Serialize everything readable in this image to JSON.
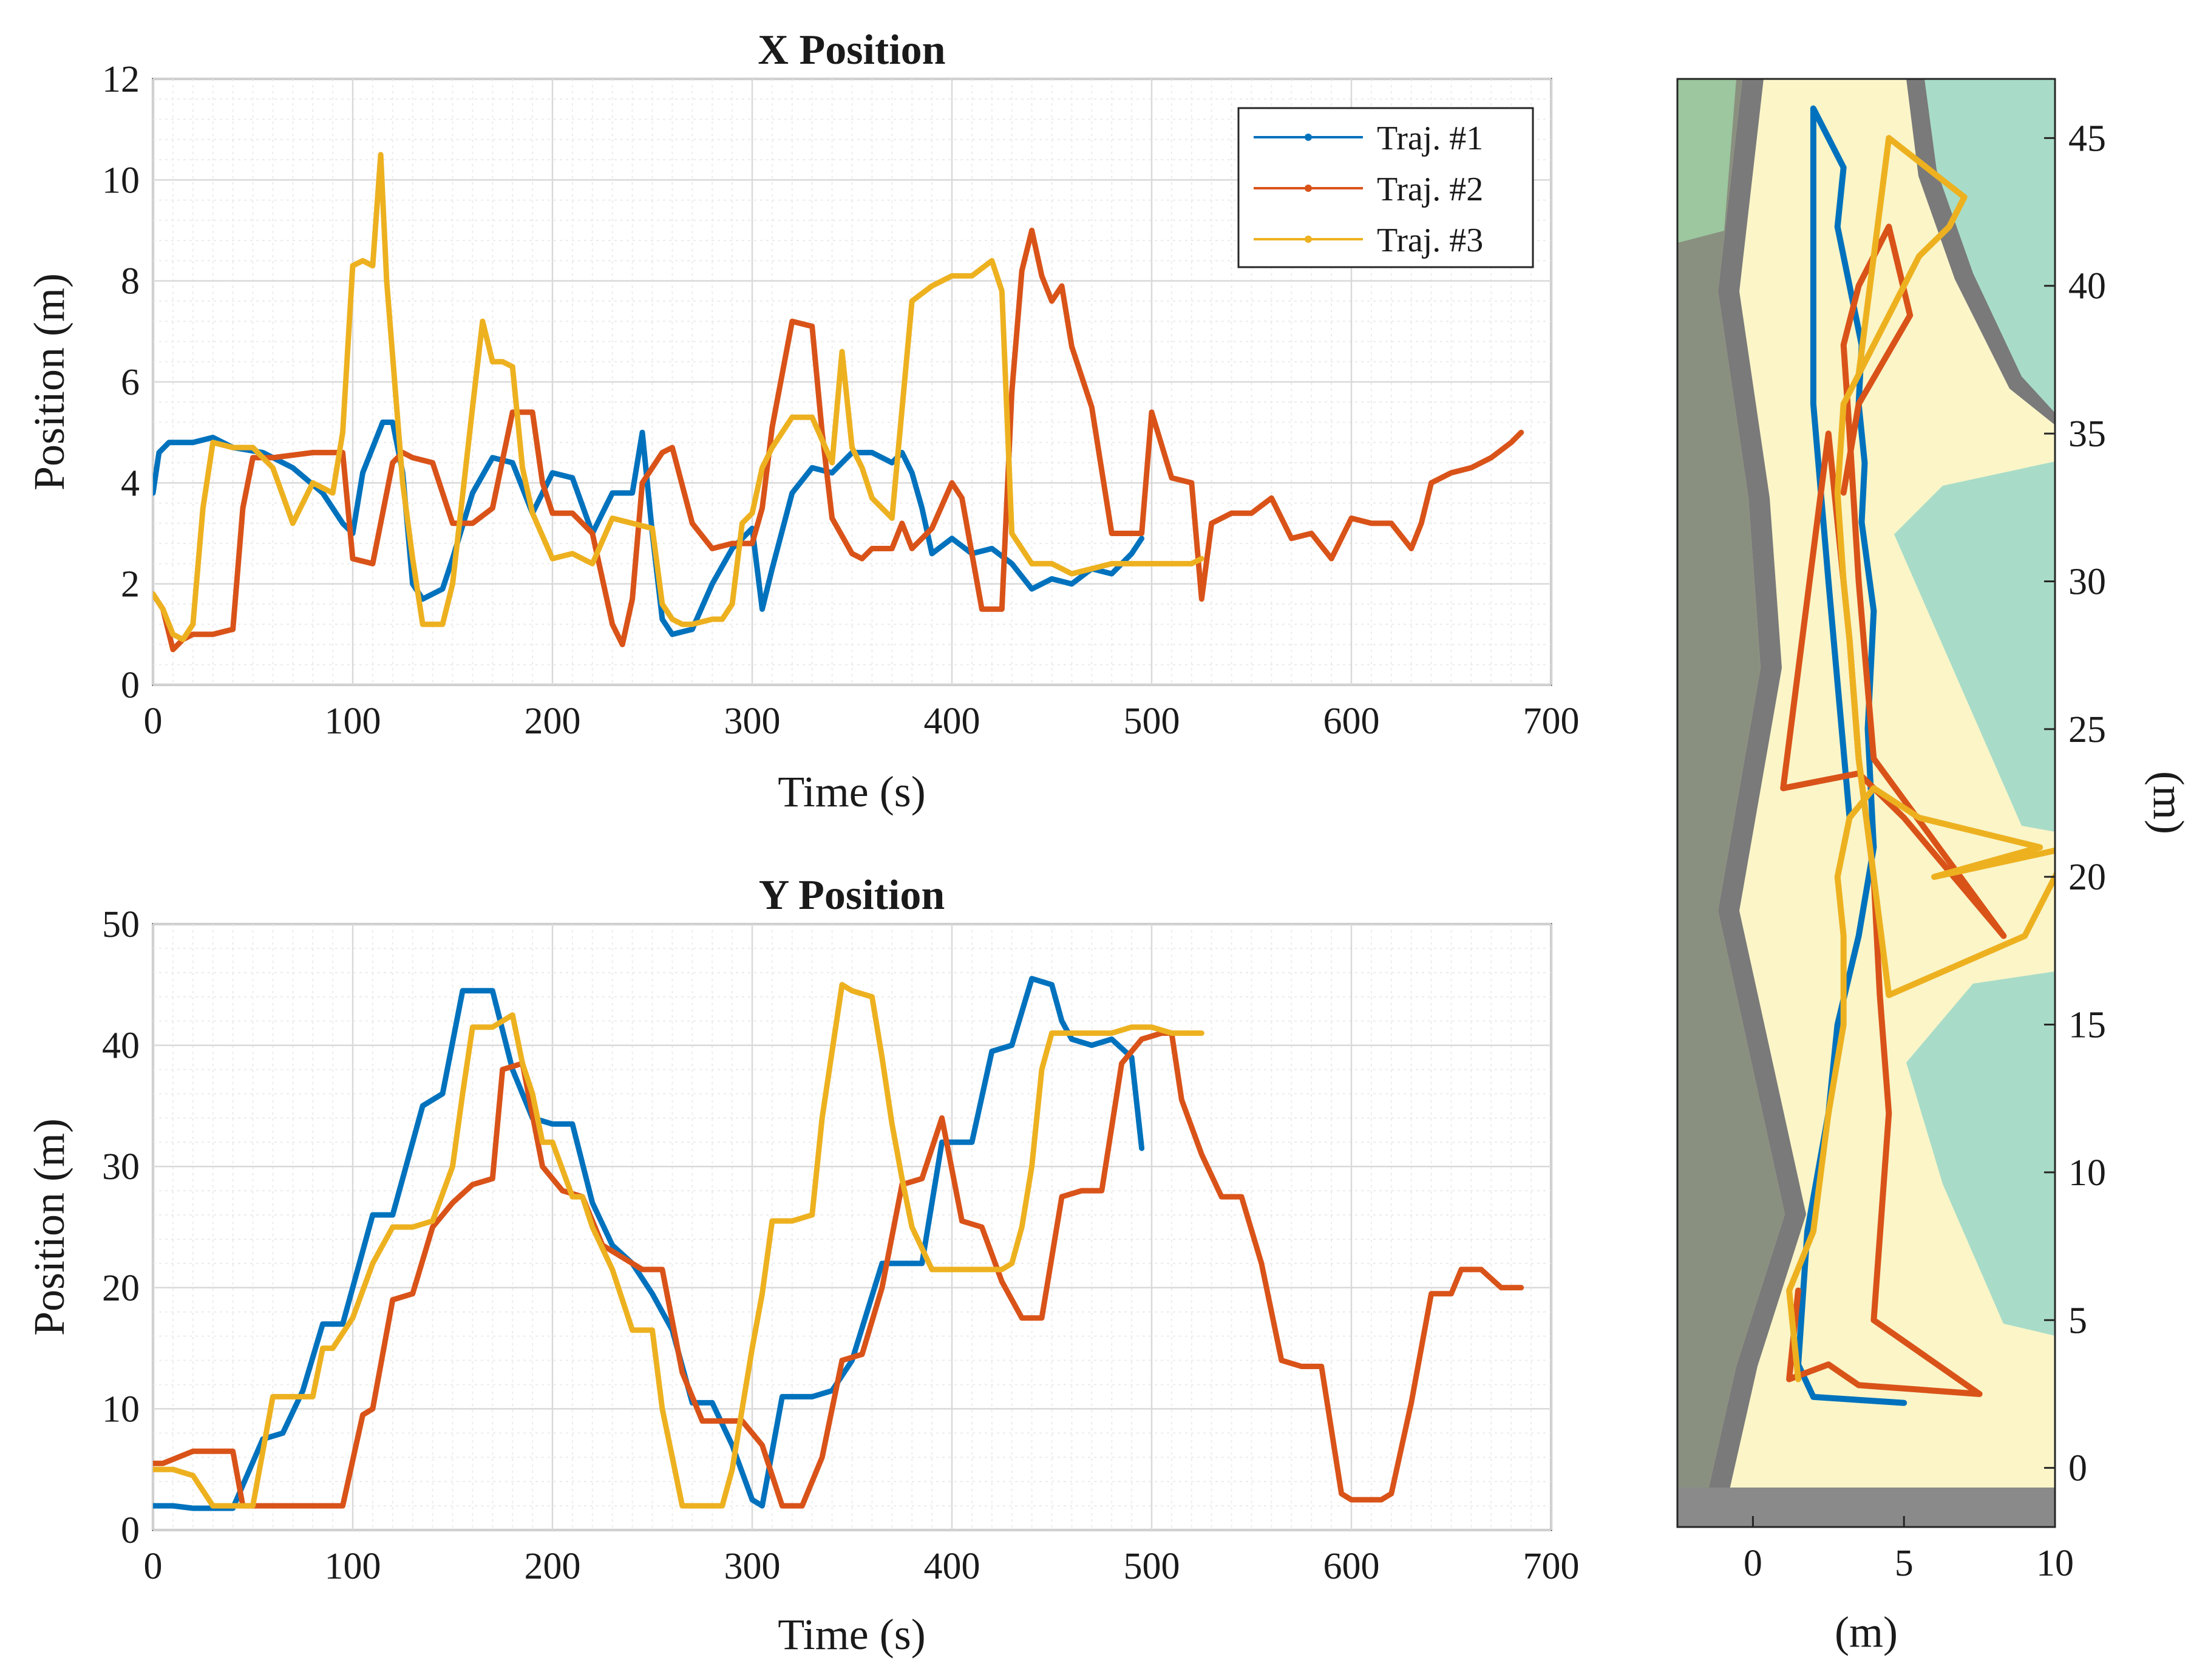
{
  "colors": {
    "traj1": "#0072BD",
    "traj2": "#D95319",
    "traj3": "#EDB120",
    "grid": "#d9d9d9"
  },
  "chart_data": [
    {
      "type": "line",
      "title": "X Position",
      "xlabel": "Time (s)",
      "ylabel": "Position (m)",
      "xlim": [
        0,
        700
      ],
      "ylim": [
        0,
        12
      ],
      "xticks": [
        "0",
        "100",
        "200",
        "300",
        "400",
        "500",
        "600",
        "700"
      ],
      "yticks": [
        "0",
        "2",
        "4",
        "6",
        "8",
        "10",
        "12"
      ],
      "legend": {
        "position": "top-right",
        "entries": [
          "Traj. #1",
          "Traj. #2",
          "Traj. #3"
        ]
      },
      "series": [
        {
          "name": "Traj. #1",
          "x": [
            0,
            3,
            8,
            20,
            30,
            40,
            55,
            70,
            85,
            95,
            100,
            105,
            115,
            120,
            125,
            130,
            135,
            145,
            150,
            160,
            170,
            180,
            190,
            200,
            210,
            220,
            230,
            240,
            245,
            250,
            255,
            260,
            270,
            280,
            290,
            300,
            305,
            310,
            320,
            330,
            340,
            350,
            360,
            370,
            375,
            380,
            385,
            390,
            400,
            410,
            420,
            430,
            440,
            450,
            460,
            470,
            480,
            490,
            495
          ],
          "y": [
            3.8,
            4.6,
            4.8,
            4.8,
            4.9,
            4.7,
            4.6,
            4.3,
            3.8,
            3.2,
            3.0,
            4.2,
            5.2,
            5.2,
            4.2,
            2.0,
            1.7,
            1.9,
            2.5,
            3.8,
            4.5,
            4.4,
            3.4,
            4.2,
            4.1,
            3.0,
            3.8,
            3.8,
            5.0,
            3.0,
            1.3,
            1.0,
            1.1,
            2.0,
            2.7,
            3.1,
            1.5,
            2.3,
            3.8,
            4.3,
            4.2,
            4.6,
            4.6,
            4.4,
            4.6,
            4.2,
            3.5,
            2.6,
            2.9,
            2.6,
            2.7,
            2.4,
            1.9,
            2.1,
            2.0,
            2.3,
            2.2,
            2.6,
            2.9
          ]
        },
        {
          "name": "Traj. #2",
          "x": [
            0,
            5,
            10,
            15,
            20,
            30,
            40,
            45,
            50,
            60,
            80,
            90,
            95,
            100,
            110,
            120,
            125,
            130,
            140,
            150,
            160,
            170,
            180,
            190,
            195,
            200,
            210,
            220,
            230,
            235,
            240,
            245,
            250,
            255,
            260,
            270,
            280,
            290,
            300,
            305,
            310,
            320,
            330,
            335,
            340,
            350,
            355,
            360,
            370,
            375,
            380,
            390,
            400,
            405,
            410,
            415,
            420,
            425,
            430,
            435,
            440,
            445,
            450,
            455,
            460,
            470,
            480,
            490,
            495,
            500,
            510,
            520,
            525,
            530,
            540,
            550,
            560,
            570,
            580,
            590,
            600,
            610,
            620,
            630,
            635,
            640,
            650,
            660,
            670,
            680,
            685
          ],
          "y": [
            1.8,
            1.5,
            0.7,
            0.9,
            1.0,
            1.0,
            1.1,
            3.5,
            4.5,
            4.5,
            4.6,
            4.6,
            4.6,
            2.5,
            2.4,
            4.4,
            4.6,
            4.5,
            4.4,
            3.2,
            3.2,
            3.5,
            5.4,
            5.4,
            4.0,
            3.4,
            3.4,
            3.0,
            1.2,
            0.8,
            1.7,
            4.0,
            4.3,
            4.6,
            4.7,
            3.2,
            2.7,
            2.8,
            2.8,
            3.5,
            5.1,
            7.2,
            7.1,
            5.0,
            3.3,
            2.6,
            2.5,
            2.7,
            2.7,
            3.2,
            2.7,
            3.1,
            4.0,
            3.7,
            2.6,
            1.5,
            1.5,
            1.5,
            5.8,
            8.2,
            9.0,
            8.1,
            7.6,
            7.9,
            6.7,
            5.5,
            3.0,
            3.0,
            3.0,
            5.4,
            4.1,
            4.0,
            1.7,
            3.2,
            3.4,
            3.4,
            3.7,
            2.9,
            3.0,
            2.5,
            3.3,
            3.2,
            3.2,
            2.7,
            3.2,
            4.0,
            4.2,
            4.3,
            4.5,
            4.8,
            5.0
          ]
        },
        {
          "name": "Traj. #3",
          "x": [
            0,
            5,
            10,
            15,
            20,
            25,
            30,
            40,
            50,
            60,
            70,
            80,
            90,
            95,
            100,
            105,
            110,
            114,
            117,
            120,
            125,
            130,
            135,
            140,
            145,
            150,
            160,
            165,
            170,
            175,
            180,
            185,
            190,
            200,
            210,
            220,
            230,
            240,
            250,
            255,
            260,
            265,
            270,
            280,
            285,
            290,
            295,
            300,
            305,
            310,
            320,
            330,
            340,
            345,
            350,
            355,
            360,
            370,
            380,
            390,
            400,
            410,
            420,
            425,
            430,
            440,
            450,
            460,
            470,
            480,
            490,
            500,
            510,
            520,
            525
          ],
          "y": [
            1.8,
            1.5,
            1.0,
            0.9,
            1.2,
            3.5,
            4.8,
            4.7,
            4.7,
            4.3,
            3.2,
            4.0,
            3.8,
            5.0,
            8.3,
            8.4,
            8.3,
            10.5,
            8.0,
            6.5,
            4.0,
            2.5,
            1.2,
            1.2,
            1.2,
            2.0,
            5.5,
            7.2,
            6.4,
            6.4,
            6.3,
            4.3,
            3.4,
            2.5,
            2.6,
            2.4,
            3.3,
            3.2,
            3.1,
            1.6,
            1.3,
            1.2,
            1.2,
            1.3,
            1.3,
            1.6,
            3.2,
            3.4,
            4.3,
            4.7,
            5.3,
            5.3,
            4.4,
            6.6,
            4.7,
            4.3,
            3.7,
            3.3,
            7.6,
            7.9,
            8.1,
            8.1,
            8.4,
            7.8,
            3.0,
            2.4,
            2.4,
            2.2,
            2.3,
            2.4,
            2.4,
            2.4,
            2.4,
            2.4,
            2.5
          ]
        }
      ]
    },
    {
      "type": "line",
      "title": "Y Position",
      "xlabel": "Time (s)",
      "ylabel": "Position (m)",
      "xlim": [
        0,
        700
      ],
      "ylim": [
        0,
        50
      ],
      "xticks": [
        "0",
        "100",
        "200",
        "300",
        "400",
        "500",
        "600",
        "700"
      ],
      "yticks": [
        "0",
        "10",
        "20",
        "30",
        "40",
        "50"
      ],
      "series": [
        {
          "name": "Traj. #1",
          "x": [
            0,
            10,
            20,
            40,
            55,
            65,
            75,
            85,
            95,
            110,
            120,
            135,
            145,
            155,
            170,
            180,
            190,
            200,
            210,
            220,
            230,
            240,
            250,
            260,
            270,
            280,
            290,
            300,
            305,
            315,
            330,
            340,
            350,
            365,
            375,
            385,
            395,
            410,
            420,
            430,
            440,
            450,
            455,
            460,
            470,
            480,
            490,
            495
          ],
          "y": [
            2,
            2,
            1.8,
            1.8,
            7.5,
            8,
            11.5,
            17,
            17,
            26,
            26,
            35,
            36,
            44.5,
            44.5,
            38,
            34,
            33.5,
            33.5,
            27,
            23.5,
            22,
            19.5,
            16.5,
            10.5,
            10.5,
            7,
            2.5,
            2,
            11,
            11,
            11.5,
            14,
            22,
            22,
            22,
            32,
            32,
            39.5,
            40,
            45.5,
            45,
            42,
            40.5,
            40,
            40.5,
            39,
            31.5
          ]
        },
        {
          "name": "Traj. #2",
          "x": [
            0,
            5,
            20,
            40,
            45,
            50,
            60,
            70,
            90,
            95,
            105,
            110,
            120,
            130,
            140,
            150,
            160,
            170,
            175,
            185,
            195,
            205,
            215,
            225,
            235,
            245,
            255,
            265,
            275,
            285,
            295,
            305,
            315,
            325,
            335,
            345,
            355,
            365,
            375,
            385,
            395,
            405,
            415,
            425,
            435,
            445,
            455,
            465,
            475,
            485,
            495,
            505,
            510,
            515,
            525,
            535,
            545,
            555,
            565,
            575,
            585,
            595,
            600,
            615,
            620,
            630,
            640,
            650,
            655,
            665,
            675,
            685
          ],
          "y": [
            5.5,
            5.5,
            6.5,
            6.5,
            2,
            2,
            2,
            2,
            2,
            2,
            9.5,
            10,
            19,
            19.5,
            25,
            27,
            28.5,
            29,
            38,
            38.5,
            30,
            28,
            27.5,
            23.5,
            22.5,
            21.5,
            21.5,
            13,
            9,
            9,
            9,
            7,
            2,
            2,
            6,
            14,
            14.5,
            20,
            28.5,
            29,
            34,
            25.5,
            25,
            20.5,
            17.5,
            17.5,
            27.5,
            28,
            28,
            38.5,
            40.5,
            41,
            41,
            35.5,
            31,
            27.5,
            27.5,
            22,
            14,
            13.5,
            13.5,
            3,
            2.5,
            2.5,
            3,
            10.5,
            19.5,
            19.5,
            21.5,
            21.5,
            20,
            20
          ]
        },
        {
          "name": "Traj. #3",
          "x": [
            0,
            10,
            20,
            30,
            40,
            50,
            60,
            70,
            80,
            85,
            90,
            100,
            110,
            120,
            130,
            140,
            150,
            155,
            160,
            170,
            180,
            185,
            190,
            195,
            200,
            210,
            215,
            220,
            230,
            240,
            250,
            255,
            260,
            265,
            270,
            275,
            285,
            290,
            295,
            300,
            305,
            310,
            315,
            320,
            330,
            335,
            345,
            350,
            360,
            365,
            370,
            375,
            380,
            390,
            395,
            400,
            410,
            420,
            425,
            430,
            435,
            440,
            445,
            450,
            460,
            470,
            480,
            490,
            500,
            510,
            520,
            525
          ],
          "y": [
            5,
            5,
            4.5,
            2,
            2,
            2,
            11,
            11,
            11,
            15,
            15,
            17.5,
            22,
            25,
            25,
            25.5,
            30,
            36,
            41.5,
            41.5,
            42.5,
            38.5,
            36,
            32,
            32,
            27.5,
            27.5,
            25,
            21.5,
            16.5,
            16.5,
            10,
            6,
            2,
            2,
            2,
            2,
            5,
            10,
            15,
            19.5,
            25.5,
            25.5,
            25.5,
            26,
            34,
            45,
            44.5,
            44,
            39,
            33.5,
            29,
            25,
            21.5,
            21.5,
            21.5,
            21.5,
            21.5,
            21.5,
            22,
            25,
            30,
            38,
            41,
            41,
            41,
            41,
            41.5,
            41.5,
            41,
            41,
            41
          ]
        }
      ]
    },
    {
      "type": "line",
      "title": "",
      "xlabel": "(m)",
      "ylabel": "(m)",
      "ylabel_position": "right",
      "xlim": [
        -2.5,
        10
      ],
      "ylim": [
        -2,
        47
      ],
      "xticks": [
        "0",
        "5",
        "10"
      ],
      "yticks": [
        "0",
        "5",
        "10",
        "15",
        "20",
        "25",
        "30",
        "35",
        "40",
        "45"
      ],
      "background": "floor-plan map",
      "series": [
        {
          "name": "Traj. #1",
          "x": [
            5,
            3.5,
            2,
            1.5,
            1.8,
            2.5,
            2.8,
            3.5,
            4.0,
            3.8,
            4.0,
            3.6,
            3.7,
            3.5,
            3.6,
            3.2,
            2.8,
            3.0,
            2.5,
            2.0,
            2.0,
            2.0,
            2.5,
            3.2
          ],
          "y": [
            2.2,
            2.3,
            2.4,
            3.5,
            8,
            12,
            15,
            18,
            21,
            25,
            29,
            32,
            34,
            36,
            38,
            40,
            42,
            44,
            45,
            46,
            42,
            36,
            30,
            22
          ]
        },
        {
          "name": "Traj. #2",
          "x": [
            1.5,
            1.2,
            2.5,
            3.5,
            7.5,
            4,
            4.5,
            4.2,
            4.0,
            3.5,
            3.2,
            2.8,
            2.5,
            1.0,
            3.5,
            5,
            8.3,
            4,
            3.5,
            3.2,
            3.0,
            3.5,
            4.5,
            5.2,
            3.5,
            3.0
          ],
          "y": [
            6,
            3,
            3.5,
            2.8,
            2.5,
            5,
            12,
            16,
            20,
            24,
            28,
            32,
            35,
            23,
            23.5,
            22,
            18,
            24,
            30,
            35,
            38,
            40,
            42,
            39,
            36,
            33
          ]
        },
        {
          "name": "Traj. #3",
          "x": [
            1.5,
            1.2,
            2.0,
            2.5,
            3.0,
            3.0,
            2.8,
            3.2,
            4.0,
            5.5,
            9.5,
            6,
            10.5,
            9,
            4.5,
            3.5,
            3.2,
            3.0,
            2.8,
            3.0,
            4.5,
            5.5,
            6.5,
            7.0,
            4.5,
            3.5
          ],
          "y": [
            3,
            6,
            8,
            12,
            15,
            18,
            20,
            22,
            23,
            22,
            21,
            20,
            21,
            18,
            16,
            24,
            28,
            30,
            33,
            36,
            39,
            41,
            42,
            43,
            45,
            37
          ]
        }
      ]
    }
  ]
}
